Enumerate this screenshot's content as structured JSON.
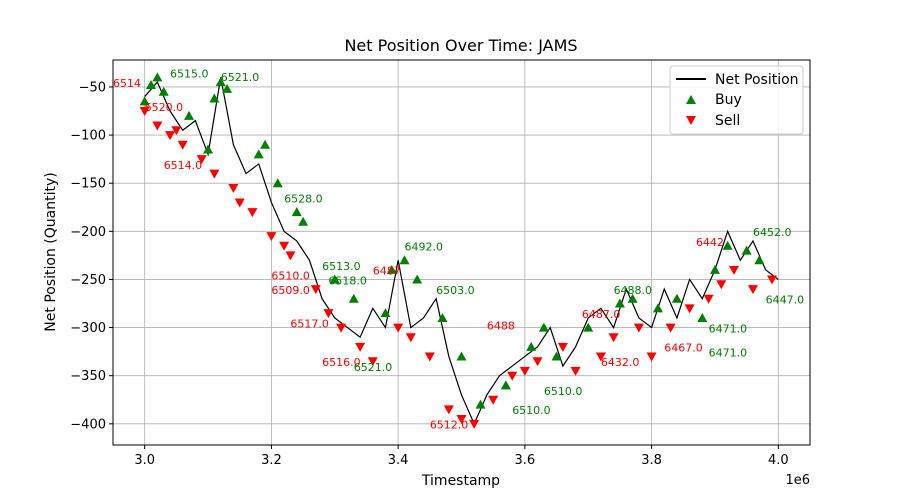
{
  "chart_data": {
    "type": "line",
    "title": "Net Position Over Time: JAMS",
    "xlabel": "Timestamp",
    "ylabel": "Net Position (Quantity)",
    "x_offset_label": "1e6",
    "xlim": [
      2.95,
      4.05
    ],
    "ylim": [
      -422,
      -22
    ],
    "x_ticks": [
      3.0,
      3.2,
      3.4,
      3.6,
      3.8,
      4.0
    ],
    "x_tick_labels": [
      "3.0",
      "3.2",
      "3.4",
      "3.6",
      "3.8",
      "4.0"
    ],
    "y_ticks": [
      -50,
      -100,
      -150,
      -200,
      -250,
      -300,
      -350,
      -400
    ],
    "y_tick_labels": [
      "−50",
      "−100",
      "−150",
      "−200",
      "−250",
      "−300",
      "−350",
      "−400"
    ],
    "grid": true,
    "legend_position": "top-right",
    "colors": {
      "line": "#000000",
      "buy": "#008000",
      "sell": "#ff0000"
    },
    "series": [
      {
        "name": "Net Position",
        "x": [
          3.0,
          3.02,
          3.04,
          3.06,
          3.08,
          3.1,
          3.12,
          3.14,
          3.16,
          3.18,
          3.2,
          3.22,
          3.24,
          3.26,
          3.28,
          3.3,
          3.32,
          3.34,
          3.36,
          3.38,
          3.4,
          3.42,
          3.44,
          3.46,
          3.48,
          3.5,
          3.52,
          3.54,
          3.56,
          3.58,
          3.6,
          3.62,
          3.64,
          3.66,
          3.68,
          3.7,
          3.72,
          3.74,
          3.76,
          3.78,
          3.8,
          3.82,
          3.84,
          3.86,
          3.88,
          3.9,
          3.92,
          3.94,
          3.96,
          3.98,
          4.0
        ],
        "y": [
          -60,
          -45,
          -75,
          -95,
          -85,
          -120,
          -40,
          -110,
          -140,
          -130,
          -170,
          -200,
          -210,
          -230,
          -270,
          -290,
          -300,
          -310,
          -280,
          -300,
          -230,
          -300,
          -290,
          -270,
          -330,
          -370,
          -400,
          -370,
          -350,
          -340,
          -330,
          -320,
          -300,
          -340,
          -320,
          -290,
          -280,
          -300,
          -260,
          -290,
          -300,
          -260,
          -290,
          -250,
          -270,
          -240,
          -200,
          -230,
          -210,
          -240,
          -250
        ]
      },
      {
        "name": "Buy",
        "x": [
          3.0,
          3.01,
          3.02,
          3.03,
          3.07,
          3.1,
          3.11,
          3.12,
          3.13,
          3.18,
          3.19,
          3.21,
          3.24,
          3.25,
          3.3,
          3.33,
          3.38,
          3.39,
          3.41,
          3.43,
          3.47,
          3.5,
          3.53,
          3.57,
          3.61,
          3.63,
          3.65,
          3.7,
          3.75,
          3.77,
          3.81,
          3.84,
          3.88,
          3.9,
          3.92,
          3.95,
          3.97
        ],
        "y": [
          -65,
          -48,
          -40,
          -55,
          -80,
          -115,
          -62,
          -45,
          -52,
          -120,
          -110,
          -150,
          -180,
          -190,
          -250,
          -270,
          -285,
          -240,
          -230,
          -250,
          -290,
          -330,
          -380,
          -360,
          -320,
          -300,
          -330,
          -300,
          -275,
          -270,
          -280,
          -270,
          -290,
          -240,
          -215,
          -220,
          -230
        ]
      },
      {
        "name": "Sell",
        "x": [
          3.0,
          3.02,
          3.04,
          3.05,
          3.06,
          3.09,
          3.11,
          3.14,
          3.15,
          3.17,
          3.2,
          3.22,
          3.23,
          3.27,
          3.29,
          3.31,
          3.34,
          3.36,
          3.4,
          3.42,
          3.45,
          3.48,
          3.5,
          3.52,
          3.55,
          3.58,
          3.6,
          3.62,
          3.66,
          3.68,
          3.72,
          3.74,
          3.78,
          3.8,
          3.83,
          3.86,
          3.89,
          3.91,
          3.93,
          3.96,
          3.99
        ],
        "y": [
          -75,
          -90,
          -100,
          -95,
          -110,
          -125,
          -140,
          -155,
          -170,
          -180,
          -205,
          -215,
          -225,
          -260,
          -285,
          -300,
          -320,
          -335,
          -300,
          -310,
          -330,
          -385,
          -395,
          -400,
          -375,
          -350,
          -345,
          -335,
          -320,
          -345,
          -330,
          -310,
          -300,
          -330,
          -300,
          -280,
          -270,
          -255,
          -240,
          -260,
          -250
        ]
      }
    ],
    "annotations": {
      "buy_color": "#008000",
      "sell_color": "#ff0000",
      "buy": [
        {
          "text": "6515.0",
          "x": 3.04,
          "y": -40
        },
        {
          "text": "6521.0",
          "x": 3.12,
          "y": -44
        },
        {
          "text": "6513.0",
          "x": 3.28,
          "y": -240
        },
        {
          "text": "6492.0",
          "x": 3.41,
          "y": -220
        },
        {
          "text": "6503.0",
          "x": 3.46,
          "y": -265
        },
        {
          "text": "6488.0",
          "x": 3.74,
          "y": -265
        },
        {
          "text": "6452.0",
          "x": 3.96,
          "y": -205
        },
        {
          "text": "6521.0",
          "x": 3.33,
          "y": -345
        },
        {
          "text": "6510.0",
          "x": 3.63,
          "y": -370
        },
        {
          "text": "6510.0",
          "x": 3.58,
          "y": -390
        },
        {
          "text": "6471.0",
          "x": 3.89,
          "y": -305
        },
        {
          "text": "6471.0",
          "x": 3.89,
          "y": -330
        },
        {
          "text": "6447.0",
          "x": 3.98,
          "y": -275
        },
        {
          "text": "6528.0",
          "x": 3.22,
          "y": -170
        },
        {
          "text": "6518.0",
          "x": 3.29,
          "y": -255
        }
      ],
      "sell": [
        {
          "text": "6514",
          "x": 2.95,
          "y": -50
        },
        {
          "text": "6512.0",
          "x": 3.45,
          "y": -405
        },
        {
          "text": "6516.0",
          "x": 3.28,
          "y": -340
        },
        {
          "text": "6487",
          "x": 3.36,
          "y": -245
        },
        {
          "text": "6487.0",
          "x": 3.69,
          "y": -290
        },
        {
          "text": "6488",
          "x": 3.54,
          "y": -302
        },
        {
          "text": "6442",
          "x": 3.87,
          "y": -215
        },
        {
          "text": "6510.0",
          "x": 3.2,
          "y": -250
        },
        {
          "text": "6509.0",
          "x": 3.2,
          "y": -265
        },
        {
          "text": "6517.0",
          "x": 3.23,
          "y": -300
        },
        {
          "text": "6520.0",
          "x": 3.0,
          "y": -75
        },
        {
          "text": "6432.0",
          "x": 3.72,
          "y": -340
        },
        {
          "text": "6467.0",
          "x": 3.82,
          "y": -325
        },
        {
          "text": "6514.0",
          "x": 3.03,
          "y": -135
        }
      ]
    }
  }
}
